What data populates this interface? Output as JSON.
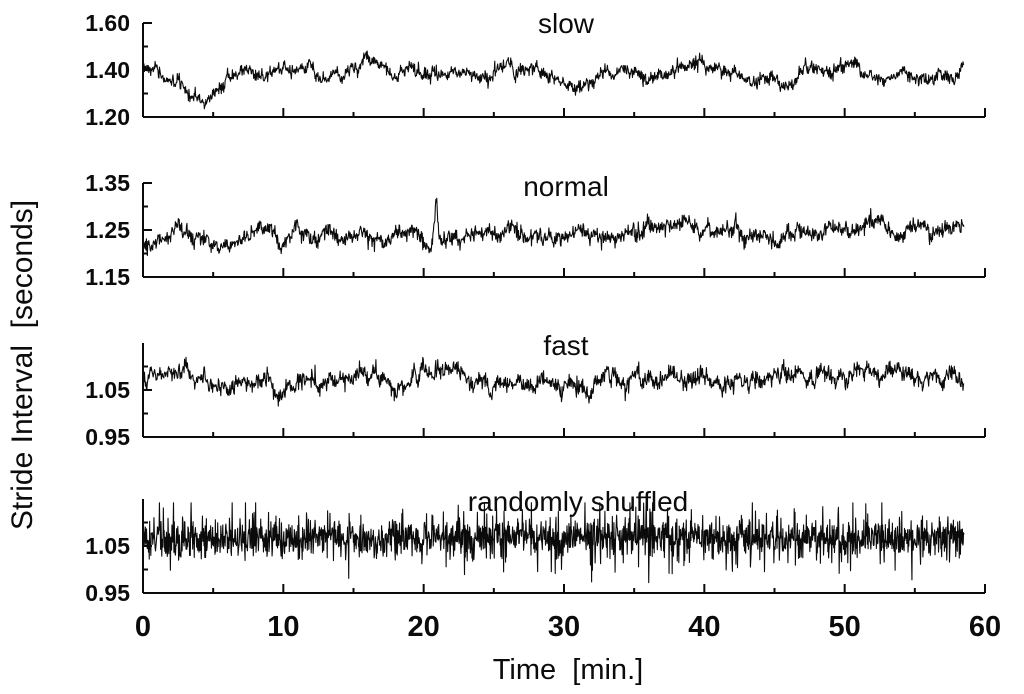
{
  "figure": {
    "background_color": "#ffffff",
    "ink_color": "#0b0b0b"
  },
  "chart_data": {
    "type": "line",
    "description": "Four stacked time-series panels of gait stride interval versus time for slow, normal and fast walking, plus a randomly shuffled series",
    "xlabel": "Time  [min.]",
    "ylabel": "Stride Interval  [seconds]",
    "xlim": [
      0,
      60
    ],
    "t_end": 58.5,
    "xticks": [
      {
        "v": 0,
        "label": "0"
      },
      {
        "v": 10,
        "label": "10"
      },
      {
        "v": 20,
        "label": "20"
      },
      {
        "v": 30,
        "label": "30"
      },
      {
        "v": 40,
        "label": "40"
      },
      {
        "v": 50,
        "label": "50"
      },
      {
        "v": 60,
        "label": "60"
      }
    ],
    "xtick_minor_step": 5,
    "grid": false,
    "legend": "none",
    "panels": [
      {
        "label": "slow",
        "ylim": [
          1.2,
          1.6
        ],
        "yticks": [
          {
            "v": 1.2,
            "label": "1.20"
          },
          {
            "v": 1.4,
            "label": "1.40"
          },
          {
            "v": 1.6,
            "label": "1.60"
          }
        ],
        "yticks_minor": [
          1.3,
          1.5
        ],
        "mean_profile": [
          [
            0,
            1.41
          ],
          [
            0.5,
            1.38
          ],
          [
            1.5,
            1.35
          ],
          [
            2.5,
            1.36
          ],
          [
            4,
            1.32
          ],
          [
            5,
            1.33
          ],
          [
            6,
            1.37
          ],
          [
            8,
            1.39
          ],
          [
            10,
            1.4
          ],
          [
            12,
            1.39
          ],
          [
            14,
            1.38
          ],
          [
            16,
            1.39
          ],
          [
            18,
            1.38
          ],
          [
            20,
            1.38
          ],
          [
            22,
            1.39
          ],
          [
            24,
            1.38
          ],
          [
            26,
            1.4
          ],
          [
            28,
            1.4
          ],
          [
            30,
            1.38
          ],
          [
            32,
            1.38
          ],
          [
            34,
            1.39
          ],
          [
            36,
            1.38
          ],
          [
            38,
            1.39
          ],
          [
            40,
            1.4
          ],
          [
            42,
            1.38
          ],
          [
            44,
            1.38
          ],
          [
            46,
            1.39
          ],
          [
            47.5,
            1.41
          ],
          [
            49,
            1.4
          ],
          [
            50.5,
            1.41
          ],
          [
            52,
            1.38
          ],
          [
            54,
            1.37
          ],
          [
            55.5,
            1.34
          ],
          [
            56.5,
            1.37
          ],
          [
            58.5,
            1.39
          ]
        ],
        "spikes": [],
        "noise": {
          "ar_alpha": 0.962,
          "ar_step": 0.006,
          "white_sd": 0.012,
          "heavy_sd": 0,
          "heavy_p": 0,
          "seed": 7,
          "clip": [
            1.235,
            1.555
          ],
          "n": 1700
        }
      },
      {
        "label": "normal",
        "ylim": [
          1.15,
          1.35
        ],
        "yticks": [
          {
            "v": 1.15,
            "label": "1.15"
          },
          {
            "v": 1.25,
            "label": "1.25"
          },
          {
            "v": 1.35,
            "label": "1.35"
          }
        ],
        "yticks_minor": [
          1.2,
          1.3
        ],
        "mean_profile": [
          [
            0,
            1.215
          ],
          [
            0.8,
            1.2
          ],
          [
            1.6,
            1.215
          ],
          [
            2.5,
            1.23
          ],
          [
            3.5,
            1.22
          ],
          [
            5,
            1.215
          ],
          [
            7,
            1.225
          ],
          [
            9,
            1.23
          ],
          [
            11,
            1.235
          ],
          [
            13,
            1.23
          ],
          [
            15,
            1.24
          ],
          [
            17,
            1.24
          ],
          [
            19,
            1.245
          ],
          [
            21,
            1.245
          ],
          [
            23,
            1.245
          ],
          [
            25,
            1.24
          ],
          [
            27,
            1.25
          ],
          [
            29,
            1.245
          ],
          [
            31,
            1.245
          ],
          [
            33,
            1.25
          ],
          [
            35,
            1.25
          ],
          [
            37,
            1.26
          ],
          [
            38.5,
            1.272
          ],
          [
            40,
            1.26
          ],
          [
            41.5,
            1.25
          ],
          [
            43,
            1.25
          ],
          [
            45,
            1.245
          ],
          [
            47,
            1.25
          ],
          [
            49,
            1.25
          ],
          [
            51,
            1.245
          ],
          [
            53,
            1.25
          ],
          [
            55,
            1.245
          ],
          [
            57,
            1.25
          ],
          [
            58.5,
            1.25
          ]
        ],
        "spikes": [
          {
            "t": 20.9,
            "h": 0.075,
            "w": 0.12
          }
        ],
        "noise": {
          "ar_alpha": 0.95,
          "ar_step": 0.0035,
          "white_sd": 0.0075,
          "heavy_sd": 0,
          "heavy_p": 0,
          "seed": 13,
          "clip": [
            1.157,
            1.343
          ],
          "n": 1700
        }
      },
      {
        "label": "fast",
        "ylim": [
          0.95,
          1.15
        ],
        "yticks": [
          {
            "v": 0.95,
            "label": "0.95"
          },
          {
            "v": 1.05,
            "label": "1.05"
          }
        ],
        "yticks_minor": [
          1.0,
          1.1
        ],
        "mean_profile": [
          [
            0,
            1.075
          ],
          [
            2,
            1.08
          ],
          [
            4,
            1.075
          ],
          [
            6,
            1.065
          ],
          [
            8,
            1.06
          ],
          [
            9.5,
            1.055
          ],
          [
            11,
            1.075
          ],
          [
            13,
            1.07
          ],
          [
            15,
            1.075
          ],
          [
            17,
            1.07
          ],
          [
            19,
            1.08
          ],
          [
            21,
            1.085
          ],
          [
            22.5,
            1.07
          ],
          [
            24,
            1.055
          ],
          [
            25.5,
            1.05
          ],
          [
            27,
            1.06
          ],
          [
            28.5,
            1.075
          ],
          [
            30,
            1.07
          ],
          [
            32,
            1.065
          ],
          [
            34,
            1.07
          ],
          [
            36,
            1.075
          ],
          [
            38,
            1.07
          ],
          [
            40,
            1.065
          ],
          [
            42,
            1.06
          ],
          [
            44,
            1.065
          ],
          [
            46,
            1.07
          ],
          [
            48,
            1.075
          ],
          [
            50,
            1.08
          ],
          [
            51.5,
            1.095
          ],
          [
            53,
            1.098
          ],
          [
            54.5,
            1.08
          ],
          [
            56,
            1.07
          ],
          [
            57.5,
            1.075
          ],
          [
            58.5,
            1.072
          ]
        ],
        "spikes": [],
        "noise": {
          "ar_alpha": 0.95,
          "ar_step": 0.0045,
          "white_sd": 0.008,
          "heavy_sd": 0,
          "heavy_p": 0,
          "seed": 21,
          "clip": [
            0.972,
            1.138
          ],
          "n": 1700
        }
      },
      {
        "label": "randomly shuffled",
        "ylim": [
          0.95,
          1.15
        ],
        "yticks": [
          {
            "v": 0.95,
            "label": "0.95"
          },
          {
            "v": 1.05,
            "label": "1.05"
          }
        ],
        "yticks_minor": [
          1.0,
          1.1
        ],
        "mean_profile": [
          [
            0,
            1.068
          ],
          [
            58.5,
            1.068
          ]
        ],
        "spikes": [],
        "noise": {
          "ar_alpha": 0,
          "ar_step": 0,
          "white_sd": 0.02,
          "heavy_sd": 0.042,
          "heavy_p": 0.15,
          "seed": 29,
          "clip": [
            0.972,
            1.142
          ],
          "n": 2100
        }
      }
    ]
  }
}
